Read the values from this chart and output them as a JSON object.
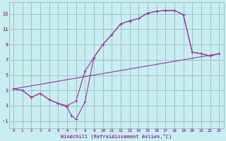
{
  "xlabel": "Windchill (Refroidissement éolien,°C)",
  "bg_color": "#c8eef0",
  "line_color": "#993399",
  "grid_color": "#9ab8c0",
  "xlim": [
    -0.5,
    23.5
  ],
  "ylim": [
    -2.0,
    14.5
  ],
  "xticks": [
    0,
    1,
    2,
    3,
    4,
    5,
    6,
    7,
    8,
    9,
    10,
    11,
    12,
    13,
    14,
    15,
    16,
    17,
    18,
    19,
    20,
    21,
    22,
    23
  ],
  "yticks": [
    -1,
    1,
    3,
    5,
    7,
    9,
    11,
    13
  ],
  "curve1_x": [
    0,
    1,
    2,
    3,
    4,
    5,
    6,
    7,
    8,
    9,
    10,
    11,
    12,
    13,
    14,
    15,
    16,
    17,
    18,
    19,
    20,
    21,
    22,
    23
  ],
  "curve1_y": [
    3.2,
    3.0,
    2.1,
    2.6,
    1.8,
    1.3,
    1.0,
    1.6,
    5.5,
    7.3,
    9.0,
    10.3,
    11.7,
    12.1,
    12.4,
    13.1,
    13.35,
    13.45,
    13.45,
    12.9,
    8.0,
    7.8,
    7.5,
    7.8
  ],
  "curve2_x": [
    0,
    1,
    2,
    3,
    4,
    5,
    6,
    6.5,
    7,
    8,
    9,
    10,
    11,
    12,
    13,
    14,
    15,
    16,
    17,
    18,
    19,
    20,
    21,
    22,
    23
  ],
  "curve2_y": [
    3.2,
    3.0,
    2.1,
    2.6,
    1.8,
    1.3,
    0.8,
    -0.3,
    -0.8,
    1.5,
    7.3,
    9.0,
    10.3,
    11.7,
    12.1,
    12.4,
    13.1,
    13.35,
    13.45,
    13.45,
    12.9,
    8.0,
    7.8,
    7.5,
    7.8
  ],
  "line3_x": [
    0,
    23
  ],
  "line3_y": [
    3.2,
    7.8
  ]
}
